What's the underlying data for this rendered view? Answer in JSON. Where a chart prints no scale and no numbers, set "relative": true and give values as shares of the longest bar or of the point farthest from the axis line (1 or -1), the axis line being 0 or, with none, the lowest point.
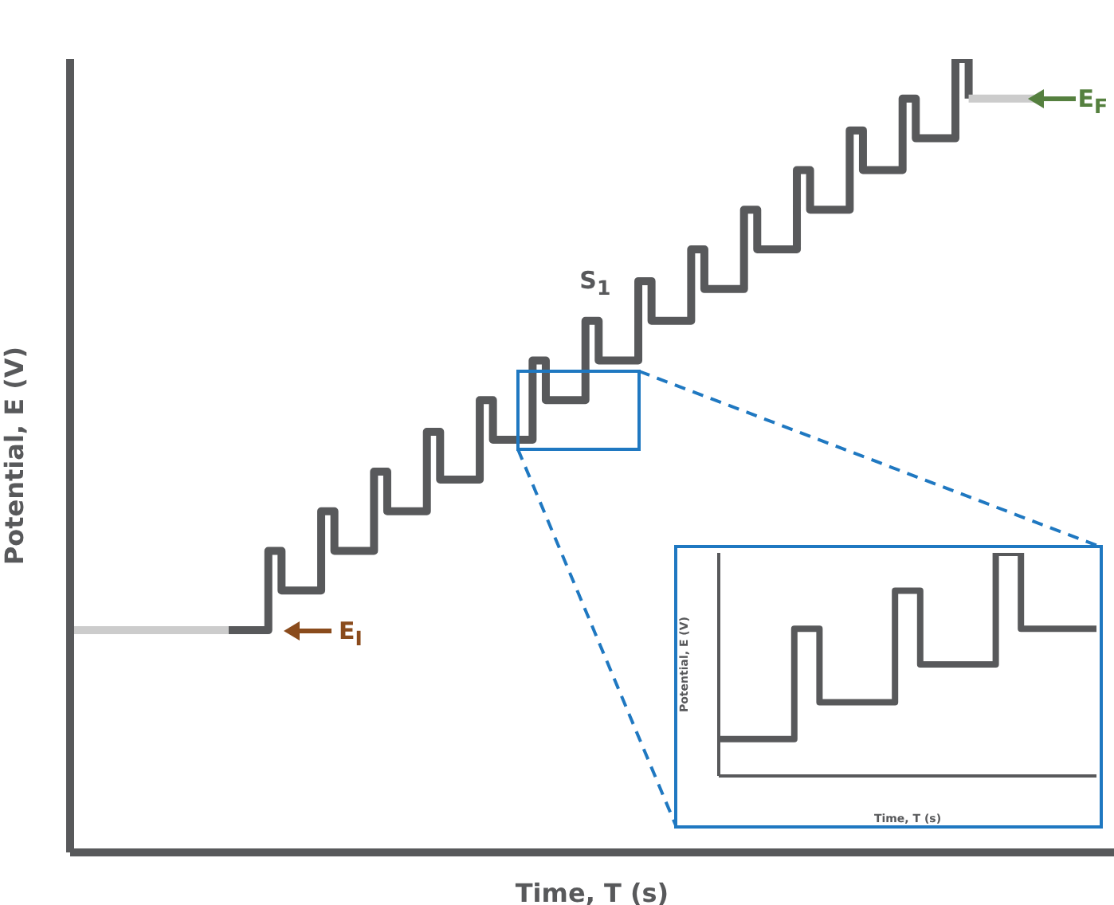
{
  "chart_data": [
    {
      "type": "step",
      "relative": true,
      "xlabel": "Time, T (s)",
      "ylabel": "Potential, E (V)",
      "categories": [
        null,
        null,
        null,
        null,
        null,
        null,
        null,
        null,
        null,
        null,
        null,
        null,
        null,
        null,
        null,
        null,
        null,
        null,
        null,
        null,
        null,
        null,
        null,
        null,
        null,
        null,
        null,
        null,
        null,
        null,
        null,
        null,
        null,
        null,
        null,
        null,
        null,
        null,
        null,
        null,
        null,
        null,
        null,
        null,
        null,
        null,
        null,
        null,
        null,
        null,
        null,
        null,
        null,
        null,
        null,
        null,
        null,
        null,
        null,
        null,
        null,
        null,
        null,
        null,
        null,
        null,
        null,
        null,
        null,
        null,
        null,
        null,
        null,
        null,
        null,
        null,
        null,
        null,
        null,
        null
      ],
      "series": [
        {
          "color": "#cccccc",
          "values": [
            0.28,
            0.28,
            0.28,
            0.28,
            0.28,
            0.28,
            0.28,
            0.28,
            0.28,
            0.28,
            0.28,
            0.28,
            0.28,
            null,
            null,
            null,
            null,
            null,
            null,
            null,
            null,
            null,
            null,
            null,
            null,
            null,
            null,
            null,
            null,
            null,
            null,
            null,
            null,
            null,
            null,
            null,
            null,
            null,
            null,
            null,
            null,
            null,
            null,
            null,
            null,
            null,
            null,
            null,
            null,
            null,
            null,
            null,
            null,
            null,
            null,
            null,
            null,
            null,
            null,
            null,
            null,
            null,
            null,
            null,
            null,
            null,
            null,
            null,
            null,
            null,
            null,
            null,
            null,
            null,
            null,
            null,
            null,
            null,
            null,
            null
          ]
        },
        {
          "color": "#58595b",
          "values": [
            null,
            null,
            null,
            null,
            null,
            null,
            null,
            null,
            null,
            null,
            null,
            null,
            0.28,
            0.28,
            0.28,
            0.38,
            0.33,
            0.33,
            0.33,
            0.43,
            0.38,
            0.38,
            0.38,
            0.48,
            0.43,
            0.43,
            0.43,
            0.53,
            0.47,
            0.47,
            0.47,
            0.57,
            0.52,
            0.52,
            0.52,
            0.62,
            0.57,
            0.57,
            0.57,
            0.67,
            0.62,
            0.62,
            0.62,
            0.72,
            0.67,
            0.67,
            0.67,
            0.76,
            0.71,
            0.71,
            0.71,
            0.81,
            0.76,
            0.76,
            0.76,
            0.86,
            0.81,
            0.81,
            0.81,
            0.91,
            0.86,
            0.86,
            0.86,
            0.95,
            0.9,
            0.9,
            0.9,
            1,
            0.95,
            null,
            null,
            null,
            null,
            null,
            null,
            null,
            null,
            null,
            null,
            null
          ]
        },
        {
          "color": "#cccccc",
          "values": [
            null,
            null,
            null,
            null,
            null,
            null,
            null,
            null,
            null,
            null,
            null,
            null,
            null,
            null,
            null,
            null,
            null,
            null,
            null,
            null,
            null,
            null,
            null,
            null,
            null,
            null,
            null,
            null,
            null,
            null,
            null,
            null,
            null,
            null,
            null,
            null,
            null,
            null,
            null,
            null,
            null,
            null,
            null,
            null,
            null,
            null,
            null,
            null,
            null,
            null,
            null,
            null,
            null,
            null,
            null,
            null,
            null,
            null,
            null,
            null,
            null,
            null,
            null,
            null,
            null,
            null,
            null,
            null,
            0.95,
            0.95,
            0.95,
            0.95,
            0.95,
            0.95,
            null,
            null,
            null,
            null,
            null,
            null
          ]
        }
      ],
      "annotations": [
        "E$_{I}$",
        "E$_{F}$",
        "S$_{1}$"
      ]
    },
    {
      "type": "step",
      "relative": true,
      "xlabel": "Time, T (s)",
      "ylabel": "Potential, E (V)",
      "categories": [
        null,
        null,
        null,
        null,
        null,
        null,
        null,
        null,
        null,
        null,
        null,
        null,
        null,
        null,
        null,
        null
      ],
      "series": [
        {
          "color": "#58595b",
          "values": [
            0.165,
            0.165,
            0.165,
            0.66,
            0.33,
            0.33,
            0.33,
            0.83,
            0.5,
            0.5,
            0.5,
            1,
            0.66,
            0.66,
            0.66,
            0.66
          ]
        }
      ]
    }
  ]
}
